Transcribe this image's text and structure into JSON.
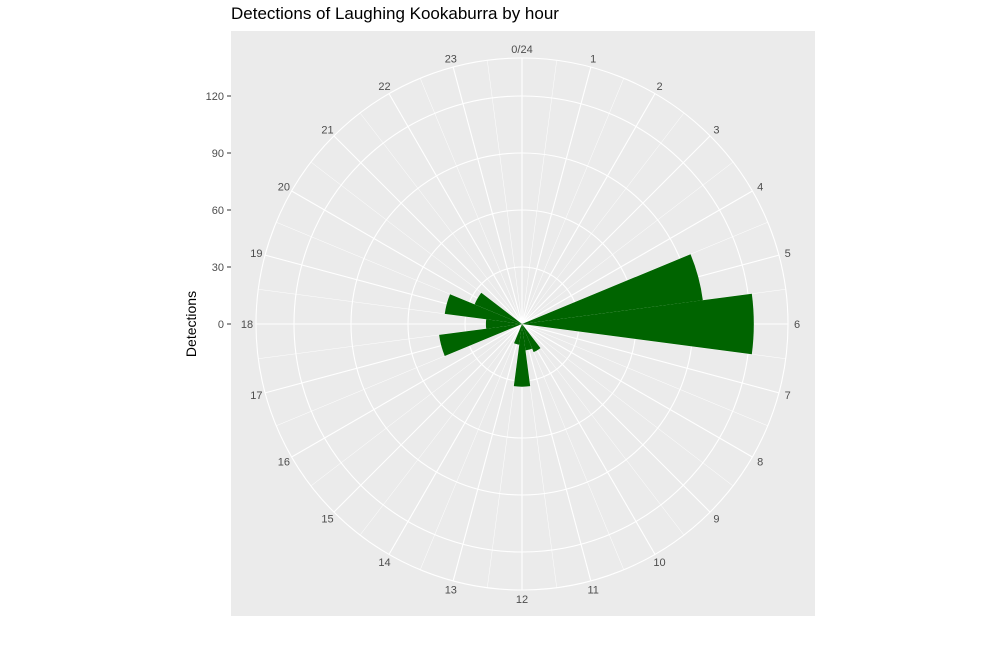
{
  "chart_data": {
    "type": "bar",
    "coord": "polar",
    "title": "Detections of Laughing Kookaburra by hour",
    "xlabel": "",
    "ylabel": "Detections",
    "y_ticks": [
      "0",
      "30",
      "60",
      "90",
      "120"
    ],
    "ylim": [
      0,
      140
    ],
    "grid": true,
    "categories": [
      "0/24",
      "1",
      "2",
      "3",
      "4",
      "5",
      "6",
      "7",
      "8",
      "9",
      "10",
      "11",
      "12",
      "13",
      "14",
      "15",
      "16",
      "17",
      "18",
      "19",
      "20",
      "21",
      "22",
      "23"
    ],
    "values": [
      0,
      0,
      0,
      0,
      0,
      96,
      122,
      0,
      0,
      0,
      16,
      14,
      33,
      11,
      0,
      0,
      0,
      44,
      19,
      41,
      27,
      0,
      0,
      0
    ],
    "colors": {
      "bar": "#006400",
      "panel": "#ebebeb",
      "grid": "#ffffff",
      "text": "#4d4d4d"
    }
  }
}
